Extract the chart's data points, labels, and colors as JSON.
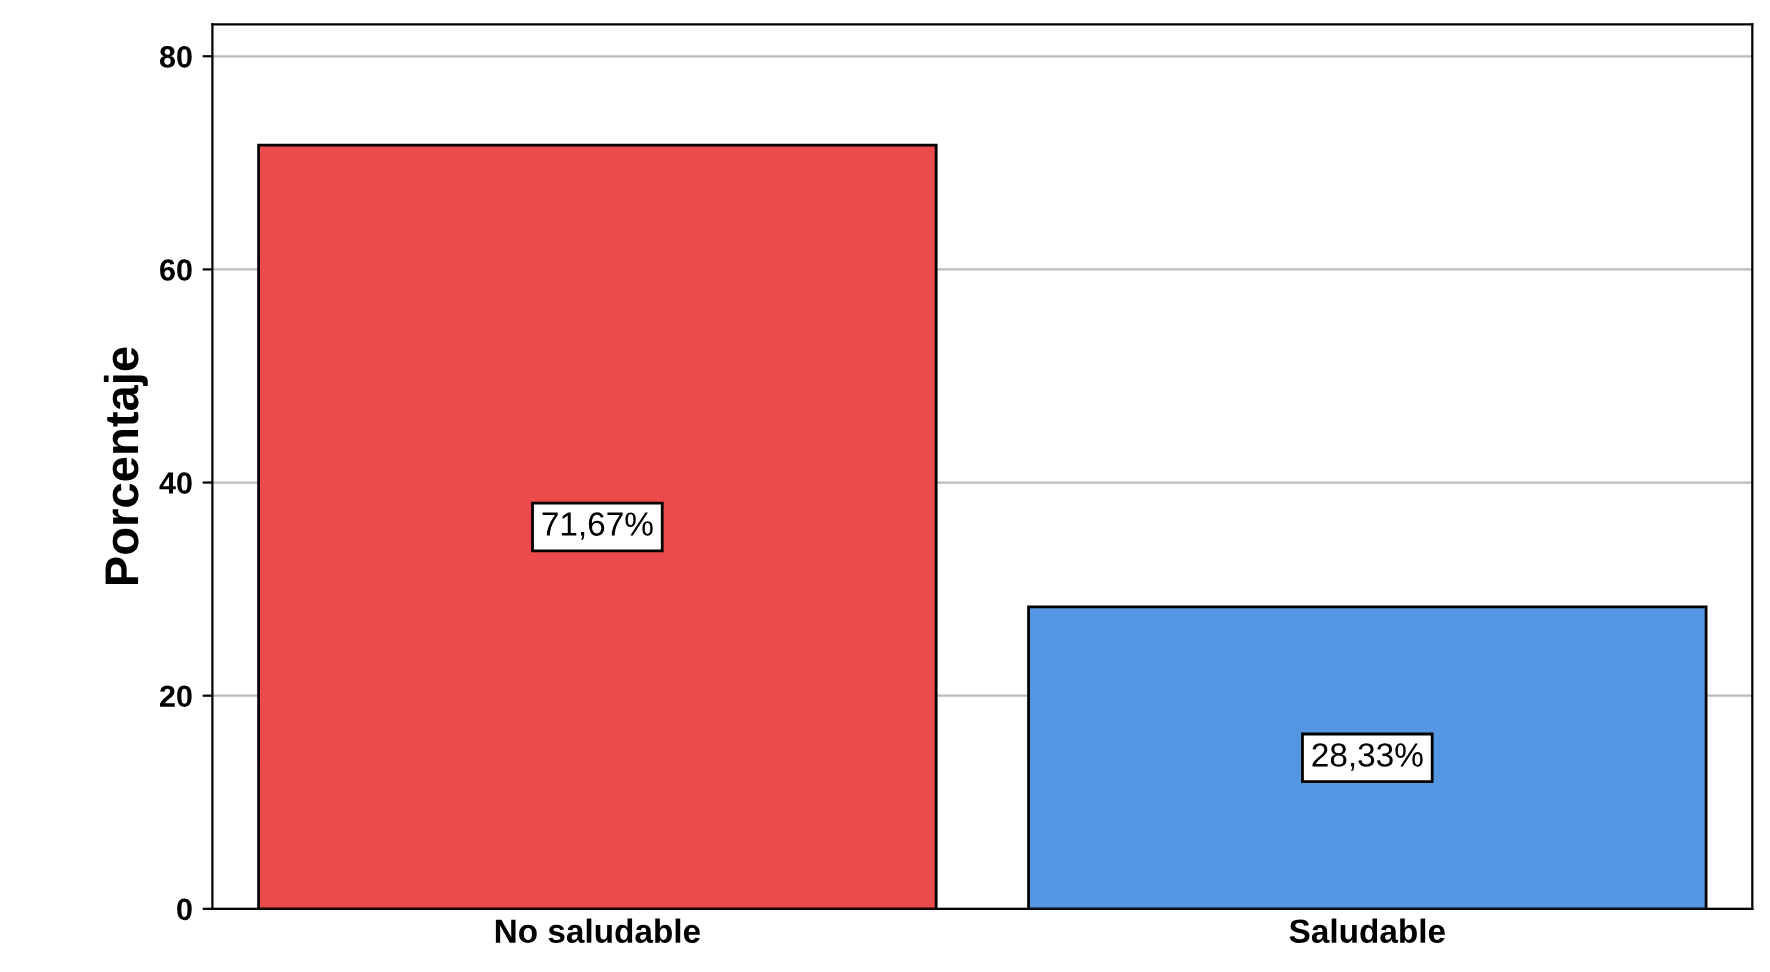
{
  "chart_data": {
    "type": "bar",
    "ylabel": "Porcentaje",
    "categories": [
      "No saludable",
      "Saludable"
    ],
    "values": [
      71.67,
      28.33
    ],
    "colors": [
      "#ec4a4b",
      "#5596e2"
    ],
    "value_labels": [
      "71,67%",
      "28,33%"
    ],
    "ylim": [
      0,
      83
    ],
    "yticks": [
      0,
      20,
      40,
      60,
      80
    ],
    "grid": "y"
  }
}
